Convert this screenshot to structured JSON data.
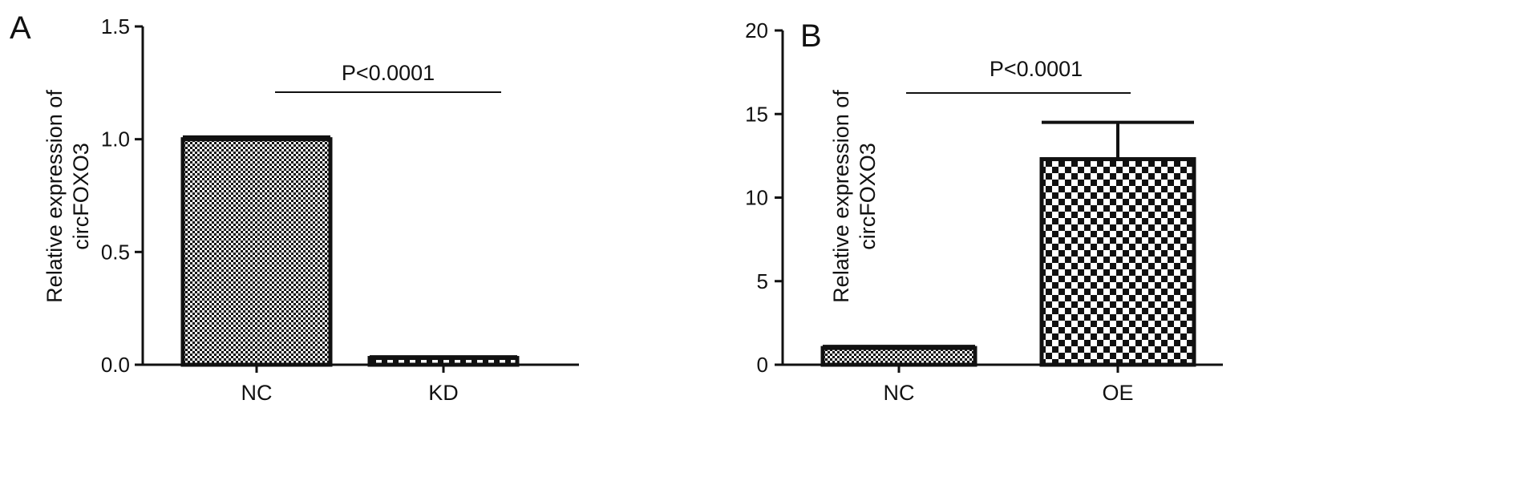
{
  "panels": [
    {
      "letter": "A",
      "ylabel_line1": "Relative expression of",
      "ylabel_line2": "circFOXO3"
    },
    {
      "letter": "B",
      "ylabel_line1": "Relative expression of",
      "ylabel_line2": "circFOXO3"
    }
  ],
  "chart_data": [
    {
      "type": "bar",
      "panel": "A",
      "categories": [
        "NC",
        "KD"
      ],
      "values": [
        1.0,
        0.03
      ],
      "errors": [
        0.01,
        0.005
      ],
      "ylabel": "Relative expression of circFOXO3",
      "xlabel": "",
      "ylim": [
        0,
        1.5
      ],
      "yticks": [
        0.0,
        0.5,
        1.0,
        1.5
      ],
      "ytick_labels": [
        "0.0",
        "0.5",
        "1.0",
        "1.5"
      ],
      "significance": {
        "label": "P<0.0001",
        "between": [
          "NC",
          "KD"
        ]
      },
      "bar_patterns": [
        "fine-checker",
        "dashed-checker"
      ],
      "grid": false
    },
    {
      "type": "bar",
      "panel": "B",
      "categories": [
        "NC",
        "OE"
      ],
      "values": [
        1.0,
        12.3
      ],
      "errors": [
        0.1,
        2.2
      ],
      "ylabel": "Relative expression of circFOXO3",
      "xlabel": "",
      "ylim": [
        0,
        20
      ],
      "yticks": [
        0,
        5,
        10,
        15,
        20
      ],
      "ytick_labels": [
        "0",
        "5",
        "10",
        "15",
        "20"
      ],
      "significance": {
        "label": "P<0.0001",
        "between": [
          "NC",
          "OE"
        ]
      },
      "bar_patterns": [
        "fine-checker",
        "coarse-checker"
      ],
      "grid": false
    }
  ],
  "colors": {
    "ink": "#111111",
    "bar_fill_light": "#ffffff",
    "bar_fill_dark": "#111111"
  }
}
